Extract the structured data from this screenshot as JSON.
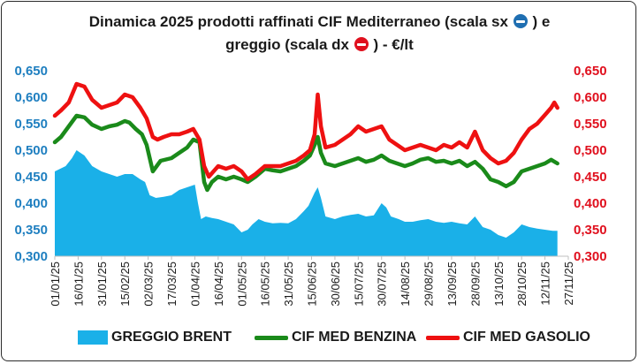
{
  "title": {
    "line1_text": "Dinamica 2025 prodotti raffinati CIF Mediterraneo (scala sx",
    "line1_end": ") e",
    "line2_text": "greggio (scala dx",
    "line2_end": ") - €/lt",
    "left_scale_symbol": "blue-circle-minus-icon",
    "right_scale_symbol": "red-circle-minus-icon"
  },
  "colors": {
    "brent": "#1ab0e8",
    "benzina": "#1a8a1a",
    "gasolio": "#ee1111",
    "left_axis": "#1f7fc0",
    "right_axis": "#e0101e"
  },
  "chart_data": {
    "type": "area",
    "x_tick_labels": [
      "01/01/25",
      "16/01/25",
      "31/01/25",
      "15/02/25",
      "02/03/25",
      "17/03/25",
      "01/04/25",
      "16/04/25",
      "01/05/25",
      "16/05/25",
      "31/05/25",
      "15/06/25",
      "30/06/25",
      "15/07/25",
      "30/07/25",
      "14/08/25",
      "29/08/25",
      "13/09/25",
      "28/09/25",
      "13/10/25",
      "28/10/25",
      "12/11/25",
      "27/11/25"
    ],
    "y_left_ticks": [
      "0,300",
      "0,350",
      "0,400",
      "0,450",
      "0,500",
      "0,550",
      "0,600",
      "0,650"
    ],
    "y_right_ticks": [
      "0,300",
      "0,350",
      "0,400",
      "0,450",
      "0,500",
      "0,550",
      "0,600",
      "0,650"
    ],
    "ylim_left": [
      0.3,
      0.65
    ],
    "ylim_right": [
      0.3,
      0.65
    ],
    "grid": false,
    "legend_position": "bottom",
    "series": [
      {
        "name": "GREGGIO BRENT",
        "axis": "left",
        "style": "area",
        "x": [
          "01/01/25",
          "08/01/25",
          "12/01/25",
          "15/01/25",
          "20/01/25",
          "25/01/25",
          "31/01/25",
          "05/02/25",
          "10/02/25",
          "15/02/25",
          "20/02/25",
          "25/02/25",
          "28/02/25",
          "03/03/25",
          "07/03/25",
          "12/03/25",
          "17/03/25",
          "22/03/25",
          "27/03/25",
          "01/04/25",
          "03/04/25",
          "05/04/25",
          "08/04/25",
          "12/04/25",
          "16/04/25",
          "21/04/25",
          "26/04/25",
          "01/05/25",
          "05/05/25",
          "08/05/25",
          "12/05/25",
          "16/05/25",
          "21/05/25",
          "26/05/25",
          "31/05/25",
          "05/06/25",
          "10/06/25",
          "13/06/25",
          "17/06/25",
          "19/06/25",
          "21/06/25",
          "24/06/25",
          "30/06/25",
          "05/07/25",
          "10/07/25",
          "15/07/25",
          "20/07/25",
          "25/07/25",
          "30/07/25",
          "02/08/25",
          "05/08/25",
          "10/08/25",
          "14/08/25",
          "19/08/25",
          "24/08/25",
          "29/08/25",
          "03/09/25",
          "08/09/25",
          "13/09/25",
          "18/09/25",
          "23/09/25",
          "28/09/25",
          "03/10/25",
          "08/10/25",
          "13/10/25",
          "18/10/25",
          "23/10/25",
          "28/10/25",
          "02/11/25",
          "07/11/25",
          "12/11/25",
          "17/11/25",
          "20/11/25"
        ],
        "values": [
          0.46,
          0.47,
          0.485,
          0.5,
          0.49,
          0.47,
          0.46,
          0.455,
          0.45,
          0.455,
          0.455,
          0.445,
          0.44,
          0.415,
          0.41,
          0.412,
          0.415,
          0.425,
          0.43,
          0.435,
          0.4,
          0.37,
          0.375,
          0.372,
          0.37,
          0.365,
          0.36,
          0.345,
          0.35,
          0.36,
          0.37,
          0.365,
          0.362,
          0.363,
          0.362,
          0.37,
          0.385,
          0.395,
          0.42,
          0.43,
          0.41,
          0.375,
          0.37,
          0.375,
          0.378,
          0.38,
          0.375,
          0.377,
          0.4,
          0.392,
          0.375,
          0.37,
          0.365,
          0.365,
          0.368,
          0.37,
          0.365,
          0.363,
          0.365,
          0.362,
          0.36,
          0.375,
          0.355,
          0.35,
          0.34,
          0.335,
          0.345,
          0.36,
          0.355,
          0.352,
          0.35,
          0.348,
          0.348
        ]
      },
      {
        "name": "CIF MED BENZINA",
        "axis": "right",
        "style": "line",
        "x": [
          "01/01/25",
          "05/01/25",
          "10/01/25",
          "15/01/25",
          "20/01/25",
          "25/01/25",
          "31/01/25",
          "05/02/25",
          "10/02/25",
          "15/02/25",
          "18/02/25",
          "22/02/25",
          "26/02/25",
          "01/03/25",
          "05/03/25",
          "10/03/25",
          "17/03/25",
          "22/03/25",
          "27/03/25",
          "31/03/25",
          "04/04/25",
          "07/04/25",
          "09/04/25",
          "12/04/25",
          "16/04/25",
          "21/04/25",
          "26/04/25",
          "01/05/25",
          "05/05/25",
          "10/05/25",
          "16/05/25",
          "21/05/25",
          "26/05/25",
          "31/05/25",
          "05/06/25",
          "10/06/25",
          "14/06/25",
          "17/06/25",
          "19/06/25",
          "21/06/25",
          "24/06/25",
          "30/06/25",
          "05/07/25",
          "10/07/25",
          "15/07/25",
          "20/07/25",
          "25/07/25",
          "30/07/25",
          "04/08/25",
          "09/08/25",
          "14/08/25",
          "19/08/25",
          "24/08/25",
          "29/08/25",
          "03/09/25",
          "08/09/25",
          "13/09/25",
          "18/09/25",
          "23/09/25",
          "28/09/25",
          "03/10/25",
          "08/10/25",
          "13/10/25",
          "18/10/25",
          "23/10/25",
          "28/10/25",
          "02/11/25",
          "07/11/25",
          "12/11/25",
          "16/11/25",
          "20/11/25"
        ],
        "values": [
          0.515,
          0.525,
          0.545,
          0.565,
          0.562,
          0.548,
          0.54,
          0.545,
          0.548,
          0.555,
          0.552,
          0.54,
          0.53,
          0.51,
          0.46,
          0.48,
          0.485,
          0.495,
          0.505,
          0.52,
          0.515,
          0.44,
          0.425,
          0.44,
          0.45,
          0.445,
          0.45,
          0.445,
          0.44,
          0.45,
          0.465,
          0.462,
          0.46,
          0.465,
          0.47,
          0.48,
          0.49,
          0.51,
          0.525,
          0.495,
          0.475,
          0.47,
          0.475,
          0.48,
          0.485,
          0.478,
          0.482,
          0.49,
          0.48,
          0.475,
          0.47,
          0.475,
          0.482,
          0.485,
          0.478,
          0.48,
          0.475,
          0.48,
          0.47,
          0.478,
          0.465,
          0.445,
          0.44,
          0.432,
          0.44,
          0.46,
          0.465,
          0.47,
          0.475,
          0.482,
          0.475
        ]
      },
      {
        "name": "CIF MED GASOLIO",
        "axis": "right",
        "style": "line",
        "x": [
          "01/01/25",
          "05/01/25",
          "10/01/25",
          "15/01/25",
          "20/01/25",
          "25/01/25",
          "31/01/25",
          "05/02/25",
          "10/02/25",
          "15/02/25",
          "20/02/25",
          "25/02/25",
          "01/03/25",
          "05/03/25",
          "08/03/25",
          "12/03/25",
          "17/03/25",
          "22/03/25",
          "27/03/25",
          "31/03/25",
          "04/04/25",
          "07/04/25",
          "10/04/25",
          "13/04/25",
          "16/04/25",
          "21/04/25",
          "26/04/25",
          "01/05/25",
          "05/05/25",
          "10/05/25",
          "16/05/25",
          "21/05/25",
          "26/05/25",
          "31/05/25",
          "05/06/25",
          "10/06/25",
          "14/06/25",
          "17/06/25",
          "19/06/25",
          "21/06/25",
          "24/06/25",
          "30/06/25",
          "05/07/25",
          "10/07/25",
          "15/07/25",
          "20/07/25",
          "25/07/25",
          "30/07/25",
          "04/08/25",
          "09/08/25",
          "14/08/25",
          "19/08/25",
          "24/08/25",
          "29/08/25",
          "03/09/25",
          "08/09/25",
          "13/09/25",
          "18/09/25",
          "23/09/25",
          "28/09/25",
          "03/10/25",
          "08/10/25",
          "13/10/25",
          "18/10/25",
          "23/10/25",
          "28/10/25",
          "02/11/25",
          "07/11/25",
          "10/11/25",
          "13/11/25",
          "16/11/25",
          "18/11/25",
          "20/11/25"
        ],
        "values": [
          0.565,
          0.575,
          0.59,
          0.625,
          0.62,
          0.595,
          0.58,
          0.585,
          0.59,
          0.605,
          0.6,
          0.58,
          0.56,
          0.525,
          0.52,
          0.525,
          0.53,
          0.53,
          0.535,
          0.54,
          0.52,
          0.47,
          0.45,
          0.46,
          0.47,
          0.465,
          0.47,
          0.46,
          0.445,
          0.455,
          0.47,
          0.47,
          0.47,
          0.475,
          0.48,
          0.49,
          0.5,
          0.53,
          0.605,
          0.545,
          0.505,
          0.51,
          0.52,
          0.53,
          0.545,
          0.535,
          0.54,
          0.545,
          0.52,
          0.51,
          0.5,
          0.505,
          0.51,
          0.505,
          0.5,
          0.51,
          0.505,
          0.515,
          0.505,
          0.535,
          0.5,
          0.485,
          0.475,
          0.48,
          0.495,
          0.52,
          0.54,
          0.55,
          0.56,
          0.57,
          0.58,
          0.59,
          0.58
        ]
      }
    ]
  }
}
